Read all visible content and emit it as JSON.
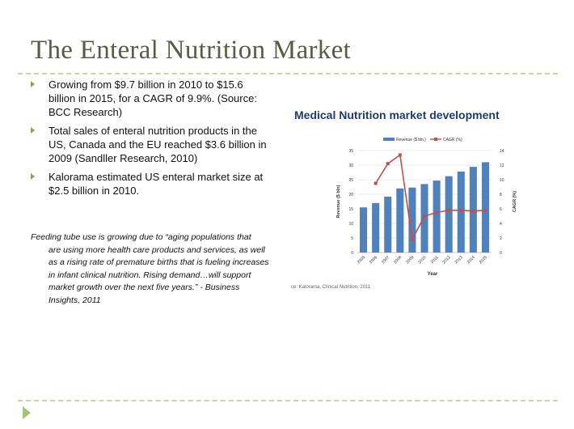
{
  "slide": {
    "title": "The Enteral Nutrition Market",
    "bullets": [
      "Growing from $9.7 billion in 2010 to $15.6 billion in 2015, for a CAGR of 9.9%. (Source: BCC Research)",
      "Total sales of enteral nutrition products in the US, Canada and the EU reached $3.6 billion in 2009 (Sandller Research, 2010)",
      "Kalorama estimated US enteral market size at $2.5 billion in 2010."
    ],
    "quote_line1": "Feeding tube use is growing due to “aging populations that",
    "quote_rest": "are using more health care products and services, as well as a rising rate of premature births that is fueling increases in infant clinical nutrition. Rising demand…will support market growth over the next five years.” - Business Insights, 2011",
    "source_note": "ce: Kalorama, Clinical Nutrition, 2011"
  },
  "chart_data": {
    "type": "bar",
    "title": "Medical Nutrition market development",
    "categories": [
      "2005",
      "2006",
      "2007",
      "2008",
      "2009",
      "2010",
      "2011",
      "2012",
      "2013",
      "2014",
      "2015"
    ],
    "series": [
      {
        "name": "Revenue ($ bln.)",
        "type": "bar",
        "axis": "left",
        "values": [
          15.5,
          17,
          19.2,
          22,
          22.3,
          23.5,
          24.7,
          26.2,
          27.8,
          29.4,
          31
        ]
      },
      {
        "name": "CAGR (%)",
        "type": "line",
        "axis": "right",
        "values": [
          null,
          9.5,
          12.2,
          13.4,
          1.8,
          5,
          5.5,
          5.8,
          5.8,
          5.7,
          5.8
        ]
      }
    ],
    "xlabel": "Year",
    "ylabel": "Revenue ($ bln)",
    "y2label": "CAGR (%)",
    "ylim": [
      0,
      35
    ],
    "yticks": [
      0,
      5,
      10,
      15,
      20,
      25,
      30,
      35
    ],
    "y2lim": [
      0,
      14
    ],
    "y2ticks": [
      0,
      2,
      4,
      6,
      8,
      10,
      12,
      14
    ],
    "grid": true,
    "legend": "top",
    "colors": {
      "bar": "#4f81bd",
      "line": "#c0504d"
    }
  }
}
